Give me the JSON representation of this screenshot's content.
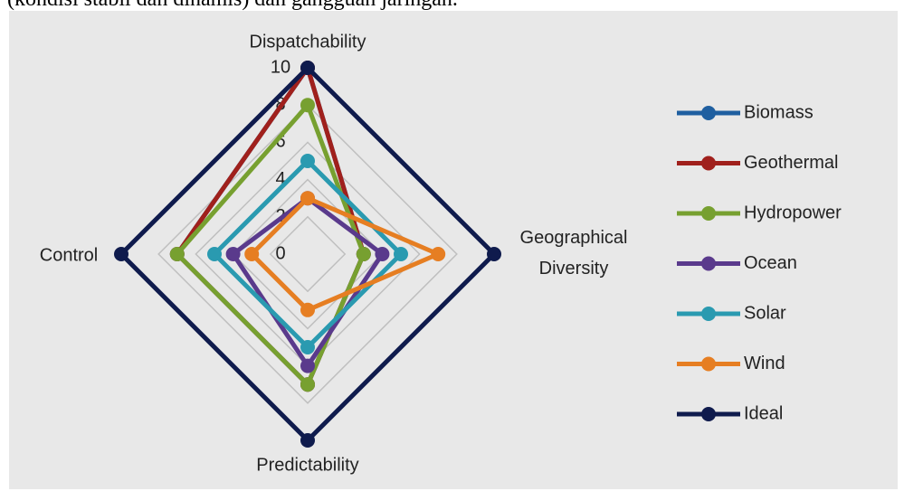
{
  "caption": "(kondisi stabil dan dinamis) dan gangguan jaringan.",
  "chart_data": {
    "type": "radar",
    "categories": [
      "Dispatchability",
      "Geographical\nDiversity",
      "Predictability",
      "Control"
    ],
    "rlim": [
      0,
      10
    ],
    "rticks": [
      0,
      2,
      4,
      6,
      8,
      10
    ],
    "grid": true,
    "legend": "right",
    "series": [
      {
        "name": "Biomass",
        "color": "#1f5fa0",
        "values": [
          10,
          3,
          7,
          7
        ]
      },
      {
        "name": "Geothermal",
        "color": "#a0201c",
        "values": [
          10,
          3,
          7,
          7
        ]
      },
      {
        "name": "Hydropower",
        "color": "#77a030",
        "values": [
          8,
          3,
          7,
          7
        ]
      },
      {
        "name": "Ocean",
        "color": "#5a3a8c",
        "values": [
          3,
          4,
          6,
          4
        ]
      },
      {
        "name": "Solar",
        "color": "#2a9ab0",
        "values": [
          5,
          5,
          5,
          5
        ]
      },
      {
        "name": "Wind",
        "color": "#e67e22",
        "values": [
          3,
          7,
          3,
          3
        ]
      },
      {
        "name": "Ideal",
        "color": "#0f1b4d",
        "values": [
          10,
          10,
          10,
          10
        ]
      }
    ]
  }
}
